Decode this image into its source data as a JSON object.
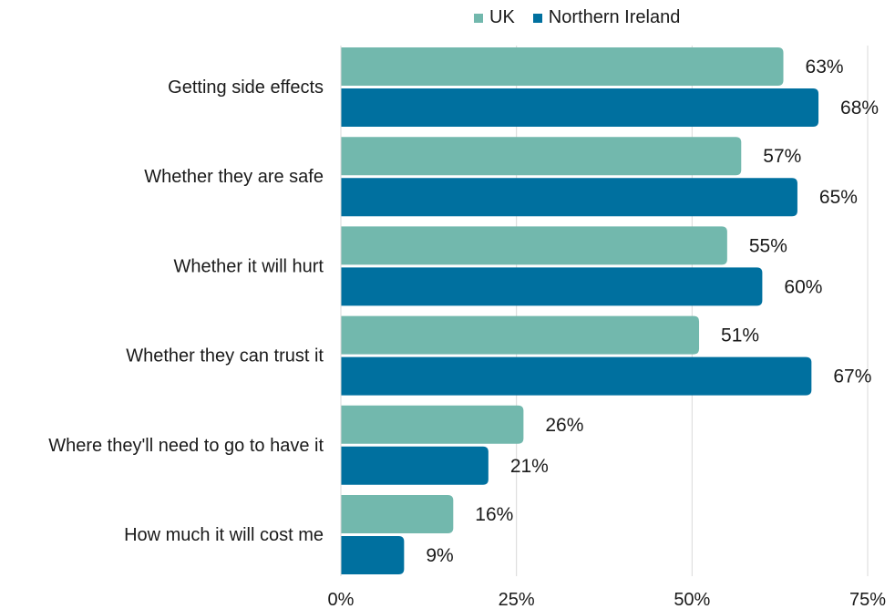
{
  "chart_data": {
    "type": "bar",
    "orientation": "horizontal",
    "categories": [
      "Getting side effects",
      "Whether they are safe",
      "Whether it will hurt",
      "Whether they can trust it",
      "Where they'll need to go to have it",
      "How much it will cost me"
    ],
    "series": [
      {
        "name": "UK",
        "color": "#72b8ad",
        "values": [
          63,
          57,
          55,
          51,
          26,
          16
        ]
      },
      {
        "name": "Northern Ireland",
        "color": "#00709f",
        "values": [
          68,
          65,
          60,
          67,
          21,
          9
        ]
      }
    ],
    "value_suffix": "%",
    "xlim": [
      0,
      75
    ],
    "xticks": [
      0,
      25,
      50,
      75
    ],
    "xtick_labels": [
      "0%",
      "25%",
      "50%",
      "75%"
    ],
    "grid": true,
    "legend_position": "top"
  }
}
